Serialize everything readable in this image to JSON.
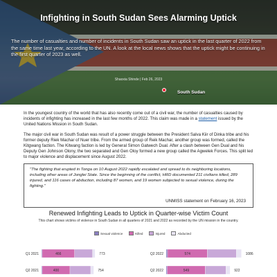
{
  "hero": {
    "title": "Infighting in South Sudan Sees Alarming Uptick",
    "subtitle": "The number of casualties and number of incidents in South Sudan saw an uptick in the last quarter of 2022 from the same time last year, according to the UN. A look at the local news shows that the uptick might be continuing in the first quarter of 2023 as well.",
    "byline": "Shaoxia Shinde | Feb 26, 2023",
    "map_label": "South Sudan"
  },
  "article": {
    "p1_before": "In the youngest country of the world that has also recently come out of a civil war, the number of casualties caused by incidents of infighting has increased in the last few months of 2022. This claim was made in a ",
    "p1_link": "statement",
    "p1_after": " issued by the United Nations Mission in South Sudan.",
    "p2": "The major civil war in South Sudan was result of a power struggle between the President Salva Kiir of Dinka tribe and his former deputy Riek Machar of Nuer tribe. From the armed group of Reik Machar, another group was formed, called the Kitgwang faction. The Kitwang faction is led by General Simon Gatwech Dual. After a clash between Gen Dual and his Deputy Gen Johnson Olony, the two separated and Gen Oloy formed a new group called the Agwelek Forces. This split led to major violence and displacement since August 2022."
  },
  "quote": {
    "text": "\"The fighting that erupted in Tonga on 10 August 2022 rapidly escalated and spread to its neighboring locations, including other areas of Jonglei State. Since the beginning of the conflict, HRD documented 211 civilians killed, 289 injured, and 116 cases of abduction, including 87 women, and 19 women subjected to sexual violence, during the fighting.\"",
    "source": "UNMISS statement on February 16, 2023"
  },
  "chart_data": {
    "type": "bar",
    "title": "Renewed Infighting Leads to Uptick in Quarter-wise Victim Count",
    "subtitle": "This chart shows victims of violence in South Sudan in all quarters of 2021 and 2022 as recorded by the UN mission in the country.",
    "legend": [
      "Sexual violence",
      "Killed",
      "Injured",
      "Abducted"
    ],
    "colors": {
      "Sexual violence": "#8a7fc0",
      "Killed": "#d06ab0",
      "Injured": "#c8a8d8",
      "Abducted": "#e8e4f4"
    },
    "panels": [
      {
        "bars": [
          {
            "label": "Q1 2021",
            "segments": [
              10,
              466,
              260,
              37
            ],
            "killed_label": "466",
            "total_label": "773"
          },
          {
            "label": "Q2 2021",
            "segments": [
              10,
              400,
              300,
              44
            ],
            "killed_label": "400",
            "total_label": "754"
          }
        ]
      },
      {
        "bars": [
          {
            "label": "Q2 2022",
            "segments": [
              20,
              574,
              420,
              72
            ],
            "killed_label": "574",
            "total_label": "1086"
          },
          {
            "label": "Q2 2022",
            "segments": [
              15,
              549,
              300,
              58
            ],
            "killed_label": "549",
            "total_label": "922"
          }
        ]
      }
    ]
  }
}
